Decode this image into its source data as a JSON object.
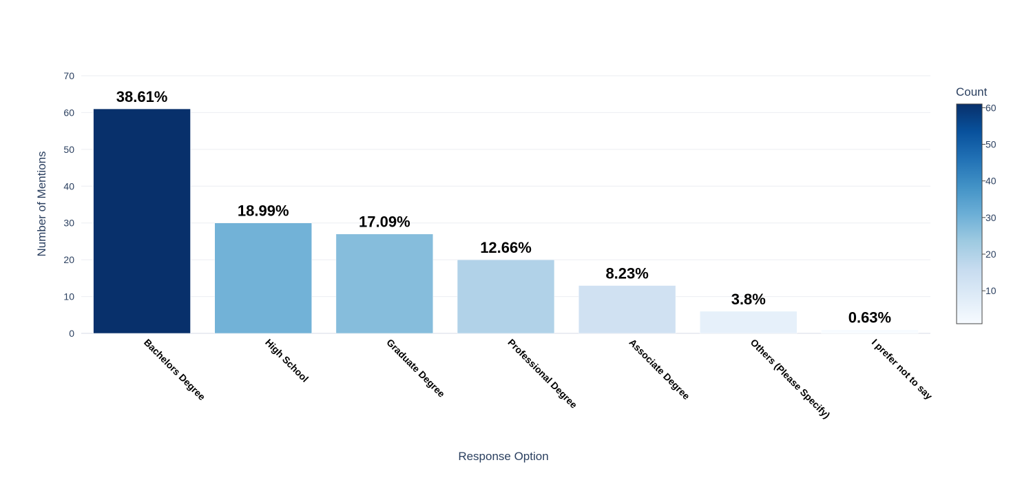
{
  "chart_data": {
    "type": "bar",
    "title": "",
    "xlabel": "Response Option",
    "ylabel": "Number of Mentions",
    "ylim": [
      0,
      70
    ],
    "yticks": [
      0,
      10,
      20,
      30,
      40,
      50,
      60,
      70
    ],
    "grid": true,
    "categories": [
      "Bachelors Degree",
      "High School",
      "Graduate Degree",
      "Professional Degree",
      "Associate Degree",
      "Others (Please Specify)",
      "I prefer not to say"
    ],
    "values": [
      61,
      30,
      27,
      20,
      13,
      6,
      1
    ],
    "data_labels": [
      "38.61%",
      "18.99%",
      "17.09%",
      "12.66%",
      "8.23%",
      "3.8%",
      "0.63%"
    ],
    "colorscale": "Blues",
    "colorbar": {
      "title": "Count",
      "range": [
        1,
        61
      ],
      "ticks": [
        10,
        20,
        30,
        40,
        50,
        60
      ],
      "placement": "right"
    }
  }
}
